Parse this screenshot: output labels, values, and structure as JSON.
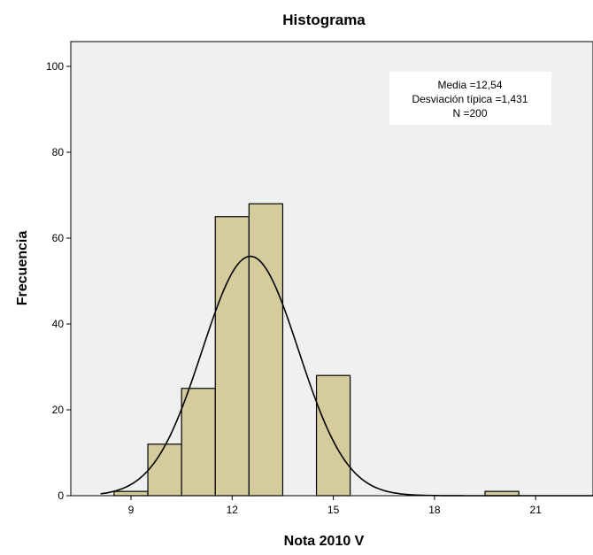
{
  "chart_data": {
    "type": "bar",
    "title": "Histograma",
    "xlabel": "Nota 2010 V",
    "ylabel": "Frecuencia",
    "xlim": [
      7,
      23.2
    ],
    "ylim": [
      0,
      105
    ],
    "x_ticks": [
      9,
      12,
      15,
      18,
      21
    ],
    "y_ticks": [
      0,
      20,
      40,
      60,
      80,
      100
    ],
    "bin_width": 1,
    "bins": [
      {
        "center": 9,
        "count": 1
      },
      {
        "center": 10,
        "count": 12
      },
      {
        "center": 11,
        "count": 25
      },
      {
        "center": 12,
        "count": 65
      },
      {
        "center": 13,
        "count": 68
      },
      {
        "center": 14,
        "count": 0
      },
      {
        "center": 15,
        "count": 28
      },
      {
        "center": 20,
        "count": 1
      }
    ],
    "normal_curve": {
      "mean": 12.54,
      "sd": 1.431,
      "n": 200
    },
    "stats_box": {
      "line1": "Media =12,54",
      "line2": "Desviación típica =1,431",
      "line3": "N =200"
    },
    "grid": false,
    "colors": {
      "plot_background": "#f0f0f0",
      "bar_fill": "#d4cc9c",
      "bar_stroke": "#000000",
      "curve": "#000000"
    }
  }
}
